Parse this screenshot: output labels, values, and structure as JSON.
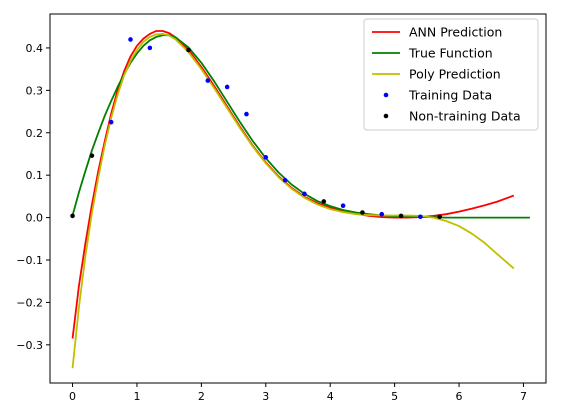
{
  "chart_data": {
    "type": "line",
    "title": "",
    "xlabel": "",
    "ylabel": "",
    "xlim": [
      -0.35,
      7.35
    ],
    "ylim": [
      -0.39,
      0.48
    ],
    "xticks": [
      0,
      1,
      2,
      3,
      4,
      5,
      6,
      7
    ],
    "yticks": [
      -0.3,
      -0.2,
      -0.1,
      0.0,
      0.1,
      0.2,
      0.3,
      0.4
    ],
    "ytick_labels": [
      "−0.3",
      "−0.2",
      "−0.1",
      "0.0",
      "0.1",
      "0.2",
      "0.3",
      "0.4"
    ],
    "grid": false,
    "legend_position": "top-right",
    "series": [
      {
        "name": "ANN Prediction",
        "kind": "line",
        "color": "#ff0000",
        "x": [
          0,
          0.1,
          0.2,
          0.3,
          0.4,
          0.5,
          0.6,
          0.7,
          0.8,
          0.9,
          1.0,
          1.1,
          1.2,
          1.3,
          1.4,
          1.5,
          1.6,
          1.8,
          2.0,
          2.2,
          2.4,
          2.6,
          2.8,
          3.0,
          3.2,
          3.4,
          3.6,
          3.8,
          4.0,
          4.2,
          4.4,
          4.6,
          4.8,
          5.0,
          5.2,
          5.4,
          5.6,
          5.8,
          6.0,
          6.2,
          6.4,
          6.6,
          6.85
        ],
        "y": [
          -0.285,
          -0.16,
          -0.06,
          0.03,
          0.11,
          0.18,
          0.245,
          0.3,
          0.345,
          0.38,
          0.405,
          0.422,
          0.433,
          0.44,
          0.44,
          0.435,
          0.425,
          0.395,
          0.355,
          0.31,
          0.262,
          0.214,
          0.169,
          0.13,
          0.097,
          0.07,
          0.049,
          0.034,
          0.023,
          0.015,
          0.009,
          0.004,
          0.001,
          0.0,
          0.0,
          0.001,
          0.004,
          0.008,
          0.014,
          0.021,
          0.029,
          0.038,
          0.052
        ]
      },
      {
        "name": "True Function",
        "kind": "line",
        "color": "#008000",
        "x": [
          0,
          0.1,
          0.2,
          0.3,
          0.4,
          0.5,
          0.6,
          0.7,
          0.8,
          0.9,
          1.0,
          1.1,
          1.2,
          1.3,
          1.4,
          1.5,
          1.6,
          1.8,
          2.0,
          2.2,
          2.4,
          2.6,
          2.8,
          3.0,
          3.2,
          3.4,
          3.6,
          3.8,
          4.0,
          4.2,
          4.4,
          4.6,
          4.8,
          5.0,
          5.2,
          5.4,
          5.6,
          5.8,
          6.0,
          6.2,
          6.4,
          6.6,
          6.8,
          7.1
        ],
        "y": [
          0.005,
          0.06,
          0.11,
          0.158,
          0.2,
          0.24,
          0.275,
          0.308,
          0.338,
          0.365,
          0.387,
          0.405,
          0.418,
          0.426,
          0.43,
          0.43,
          0.425,
          0.401,
          0.365,
          0.321,
          0.273,
          0.225,
          0.18,
          0.14,
          0.106,
          0.078,
          0.056,
          0.039,
          0.027,
          0.018,
          0.012,
          0.008,
          0.005,
          0.003,
          0.002,
          0.001,
          0.001,
          0.0,
          0.0,
          0.0,
          0.0,
          0.0,
          0.0,
          0.0
        ]
      },
      {
        "name": "Poly Prediction",
        "kind": "line",
        "color": "#bfbf00",
        "x": [
          0,
          0.1,
          0.2,
          0.3,
          0.4,
          0.5,
          0.6,
          0.7,
          0.8,
          0.9,
          1.0,
          1.1,
          1.2,
          1.3,
          1.4,
          1.5,
          1.6,
          1.8,
          2.0,
          2.2,
          2.4,
          2.6,
          2.8,
          3.0,
          3.2,
          3.4,
          3.6,
          3.8,
          4.0,
          4.2,
          4.4,
          4.6,
          4.8,
          5.0,
          5.2,
          5.4,
          5.6,
          5.8,
          6.0,
          6.2,
          6.4,
          6.6,
          6.85
        ],
        "y": [
          -0.355,
          -0.21,
          -0.09,
          0.01,
          0.095,
          0.17,
          0.235,
          0.29,
          0.335,
          0.37,
          0.395,
          0.414,
          0.426,
          0.432,
          0.433,
          0.429,
          0.42,
          0.39,
          0.35,
          0.305,
          0.258,
          0.211,
          0.167,
          0.128,
          0.095,
          0.068,
          0.047,
          0.031,
          0.02,
          0.013,
          0.008,
          0.006,
          0.005,
          0.005,
          0.005,
          0.004,
          0.0,
          -0.008,
          -0.02,
          -0.038,
          -0.06,
          -0.087,
          -0.12
        ]
      },
      {
        "name": "Training Data",
        "kind": "scatter",
        "color": "#0000ff",
        "x": [
          0.6,
          0.9,
          1.2,
          2.1,
          2.4,
          2.7,
          3.0,
          3.3,
          3.6,
          4.2,
          4.8,
          5.4
        ],
        "y": [
          0.225,
          0.42,
          0.4,
          0.323,
          0.308,
          0.244,
          0.142,
          0.088,
          0.056,
          0.028,
          0.008,
          0.002
        ]
      },
      {
        "name": "Non-training Data",
        "kind": "scatter",
        "color": "#000000",
        "x": [
          0.0,
          0.3,
          1.8,
          3.9,
          4.5,
          5.1,
          5.7
        ],
        "y": [
          0.004,
          0.146,
          0.395,
          0.038,
          0.012,
          0.004,
          0.002
        ]
      }
    ]
  }
}
